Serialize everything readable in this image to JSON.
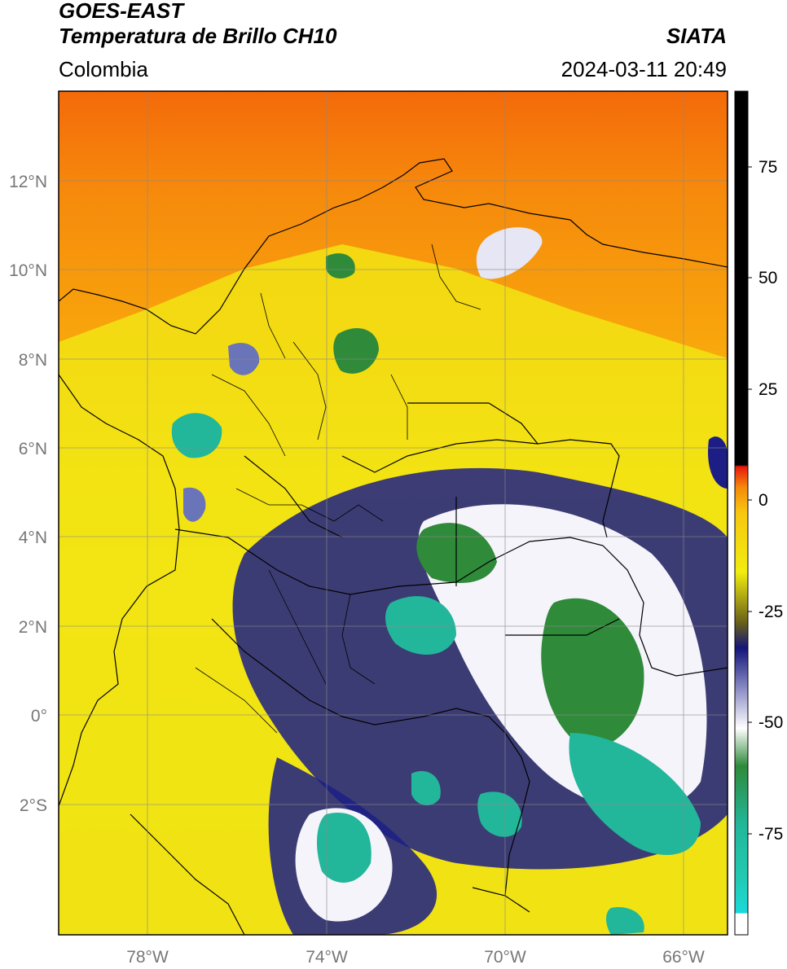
{
  "header": {
    "satellite": "GOES-EAST",
    "product": "Temperatura de Brillo CH10",
    "region": "Colombia",
    "source": "SIATA",
    "datetime": "2024-03-11 20:49"
  },
  "map": {
    "lon_ticks": [
      "78°W",
      "74°W",
      "70°W",
      "66°W"
    ],
    "lat_ticks": [
      "12°N",
      "10°N",
      "8°N",
      "6°N",
      "4°N",
      "2°N",
      "0°",
      "2°S"
    ],
    "lon_range": [
      -80,
      -65
    ],
    "lat_range": [
      -5,
      14
    ]
  },
  "colorbar": {
    "ticks": [
      "75",
      "50",
      "25",
      "0",
      "-25",
      "-50",
      "-75"
    ],
    "range": [
      -95,
      90
    ],
    "colors": {
      "black": "#000000",
      "red": "#e8180c",
      "orange": "#f68a0c",
      "yellow": "#f2ec10",
      "olive": "#686018",
      "navy": "#14157a",
      "white": "#ffffff",
      "green": "#2f8a3a",
      "teal": "#22b79a",
      "cyan": "#1ad9d9"
    }
  }
}
